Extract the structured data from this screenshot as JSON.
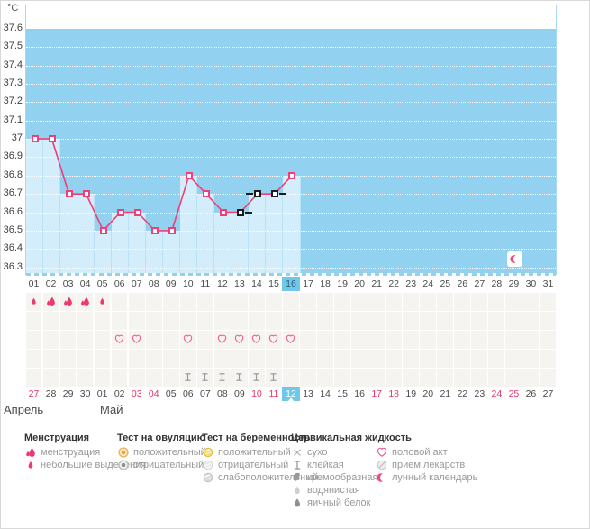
{
  "chart_data": {
    "type": "line",
    "units": "°C",
    "ylim": [
      36.3,
      37.6
    ],
    "yticks": [
      "37.6",
      "37.5",
      "37.4",
      "37.3",
      "37.2",
      "37.1",
      "37",
      "36.9",
      "36.8",
      "36.7",
      "36.6",
      "36.5",
      "36.4",
      "36.3"
    ],
    "cycle_days": [
      "01",
      "02",
      "03",
      "04",
      "05",
      "06",
      "07",
      "08",
      "09",
      "10",
      "11",
      "12",
      "13",
      "14",
      "15",
      "16",
      "17",
      "18",
      "19",
      "20",
      "21",
      "22",
      "23",
      "24",
      "25",
      "26",
      "27",
      "28",
      "29",
      "30",
      "31"
    ],
    "current_cycle_day": 16,
    "grid": "dotted-white",
    "legend_position": "bottom",
    "series": [
      {
        "points": [
          {
            "day": 1,
            "temp": 37
          },
          {
            "day": 2,
            "temp": 37
          },
          {
            "day": 3,
            "temp": 36.7
          },
          {
            "day": 4,
            "temp": 36.7
          },
          {
            "day": 5,
            "temp": 36.5
          },
          {
            "day": 6,
            "temp": 36.6
          },
          {
            "day": 7,
            "temp": 36.6
          },
          {
            "day": 8,
            "temp": 36.5
          },
          {
            "day": 9,
            "temp": 36.5
          },
          {
            "day": 10,
            "temp": 36.8
          },
          {
            "day": 11,
            "temp": 36.7
          },
          {
            "day": 12,
            "temp": 36.6
          },
          {
            "day": 13,
            "temp": 36.6,
            "excluded": true,
            "dash": "right"
          },
          {
            "day": 14,
            "temp": 36.7,
            "excluded": true,
            "dash": "left"
          },
          {
            "day": 15,
            "temp": 36.7,
            "excluded": true,
            "dash": "right"
          },
          {
            "day": 16,
            "temp": 36.8
          }
        ]
      }
    ],
    "moon_marker": {
      "cycle_day": 29,
      "icon": "moon-crescent"
    }
  },
  "event_rows": [
    {
      "name": "menstruation",
      "cells": {
        "1": "drop-small",
        "2": "drop-large",
        "3": "drop-large",
        "4": "drop-large",
        "5": "drop-small"
      }
    },
    {
      "name": "ovulation-tests",
      "cells": {}
    },
    {
      "name": "intercourse",
      "cells": {
        "6": "heart",
        "7": "heart",
        "10": "heart",
        "12": "heart",
        "13": "heart",
        "14": "heart",
        "15": "heart",
        "16": "heart"
      }
    },
    {
      "name": "pregnancy-tests",
      "cells": {}
    },
    {
      "name": "cervical-fluid",
      "cells": {
        "10": "sticky",
        "11": "sticky",
        "12": "sticky",
        "13": "sticky",
        "14": "sticky",
        "15": "sticky"
      }
    }
  ],
  "calendar": {
    "month_left": "Апрель",
    "month_right": "Май",
    "dates": [
      {
        "label": "27",
        "weekend": true
      },
      {
        "label": "28"
      },
      {
        "label": "29"
      },
      {
        "label": "30"
      },
      {
        "label": "01"
      },
      {
        "label": "02"
      },
      {
        "label": "03",
        "weekend": true
      },
      {
        "label": "04",
        "weekend": true
      },
      {
        "label": "05"
      },
      {
        "label": "06"
      },
      {
        "label": "07"
      },
      {
        "label": "08"
      },
      {
        "label": "09"
      },
      {
        "label": "10",
        "weekend": true
      },
      {
        "label": "11",
        "weekend": true
      },
      {
        "label": "12",
        "highlight": true
      },
      {
        "label": "13"
      },
      {
        "label": "14"
      },
      {
        "label": "15"
      },
      {
        "label": "16"
      },
      {
        "label": "17",
        "weekend": true
      },
      {
        "label": "18",
        "weekend": true
      },
      {
        "label": "19"
      },
      {
        "label": "20"
      },
      {
        "label": "21"
      },
      {
        "label": "22"
      },
      {
        "label": "23"
      },
      {
        "label": "24",
        "weekend": true
      },
      {
        "label": "25",
        "weekend": true
      },
      {
        "label": "26"
      },
      {
        "label": "27"
      }
    ]
  },
  "legend": {
    "columns": [
      {
        "title": "Менструация",
        "items": [
          {
            "icon": "drop-large",
            "label": "менструация"
          },
          {
            "icon": "drop-small",
            "label": "небольшие выделения"
          }
        ]
      },
      {
        "title": "Тест на овуляцию",
        "items": [
          {
            "icon": "ovulation-positive",
            "label": "положительный"
          },
          {
            "icon": "ovulation-negative",
            "label": "отрицательный"
          }
        ]
      },
      {
        "title": "Тест на беременность",
        "items": [
          {
            "icon": "pregnancy-positive",
            "label": "положительный"
          },
          {
            "icon": "pregnancy-negative",
            "label": "отрицательный"
          },
          {
            "icon": "pregnancy-weak",
            "label": "слабоположительный"
          }
        ]
      },
      {
        "title": "Цервикальная жидкость",
        "items": [
          {
            "icon": "dry-cross",
            "label": "сухо"
          },
          {
            "icon": "sticky",
            "label": "клейкая"
          },
          {
            "icon": "creamy-comma",
            "label": "кремообразная"
          },
          {
            "icon": "watery-drop",
            "label": "водянистая"
          },
          {
            "icon": "eggwhite-drop",
            "label": "яичный белок"
          }
        ]
      },
      {
        "title": "",
        "items": [
          {
            "icon": "heart",
            "label": "половой акт"
          },
          {
            "icon": "pill",
            "label": "прием лекарств"
          },
          {
            "icon": "moon-crescent",
            "label": "лунный календарь"
          }
        ]
      }
    ]
  },
  "colors": {
    "line_pink": "#EF3E78",
    "drop_pink": "#EC3A6E",
    "heart_pink": "#F0608E",
    "moon_pink": "#F5477D",
    "chart_blue": "#92D1EF",
    "column_blue": "#D3EDFB",
    "highlight_blue": "#6FC7EA",
    "weekend_red": "#E8336A",
    "ovulation_orange": "#F0A231",
    "pregnancy_yellow": "#F8DC6E",
    "icon_gray": "#9A9A9A"
  }
}
